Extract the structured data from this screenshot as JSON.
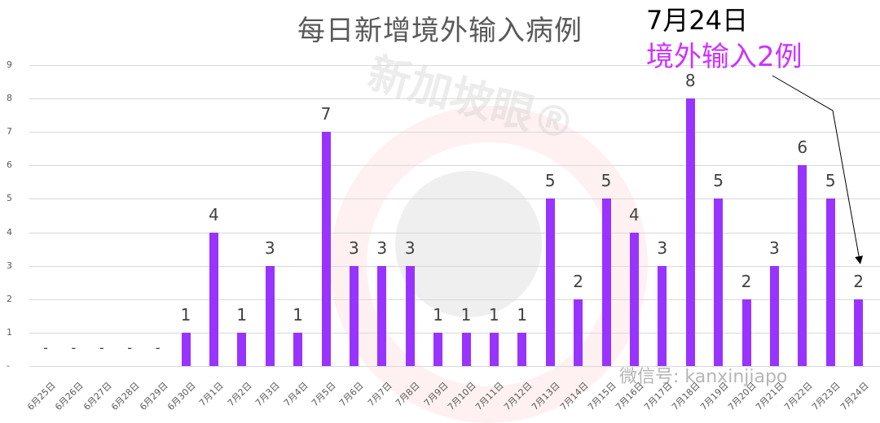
{
  "chart_data": {
    "type": "bar",
    "title": "每日新增境外输入病例",
    "xlabel": "",
    "ylabel": "",
    "ylim": [
      0,
      9
    ],
    "yticks": [
      "-",
      "1",
      "2",
      "3",
      "4",
      "5",
      "6",
      "7",
      "8",
      "9"
    ],
    "grid": true,
    "legend": null,
    "categories": [
      "6月25日",
      "6月26日",
      "6月27日",
      "6月28日",
      "6月29日",
      "6月30日",
      "7月1日",
      "7月2日",
      "7月3日",
      "7月4日",
      "7月5日",
      "7月6日",
      "7月7日",
      "7月8日",
      "7月9日",
      "7月10日",
      "7月11日",
      "7月12日",
      "7月13日",
      "7月14日",
      "7月15日",
      "7月16日",
      "7月17日",
      "7月18日",
      "7月19日",
      "7月20日",
      "7月21日",
      "7月22日",
      "7月23日",
      "7月24日"
    ],
    "values": [
      0,
      0,
      0,
      0,
      0,
      1,
      4,
      1,
      3,
      1,
      7,
      3,
      3,
      3,
      1,
      1,
      1,
      1,
      5,
      2,
      5,
      4,
      3,
      8,
      5,
      2,
      3,
      6,
      5,
      2
    ],
    "data_labels": [
      "-",
      "-",
      "-",
      "-",
      "-",
      "1",
      "4",
      "1",
      "3",
      "1",
      "7",
      "3",
      "3",
      "3",
      "1",
      "1",
      "1",
      "1",
      "5",
      "2",
      "5",
      "4",
      "3",
      "8",
      "5",
      "2",
      "3",
      "6",
      "5",
      "2"
    ],
    "bar_color": "#9933ff",
    "annotations": [
      {
        "text_line1": "7月24日",
        "text_line2": "境外输入2例",
        "points_to": "7月24日"
      }
    ]
  },
  "annotation": {
    "date": "7月24日",
    "count_text": "境外输入2例",
    "date_color": "#000000",
    "count_color": "#cc33ff"
  },
  "watermarks": {
    "brand": "新加坡眼®",
    "wechat": "微信号: kanxinjiapo"
  }
}
